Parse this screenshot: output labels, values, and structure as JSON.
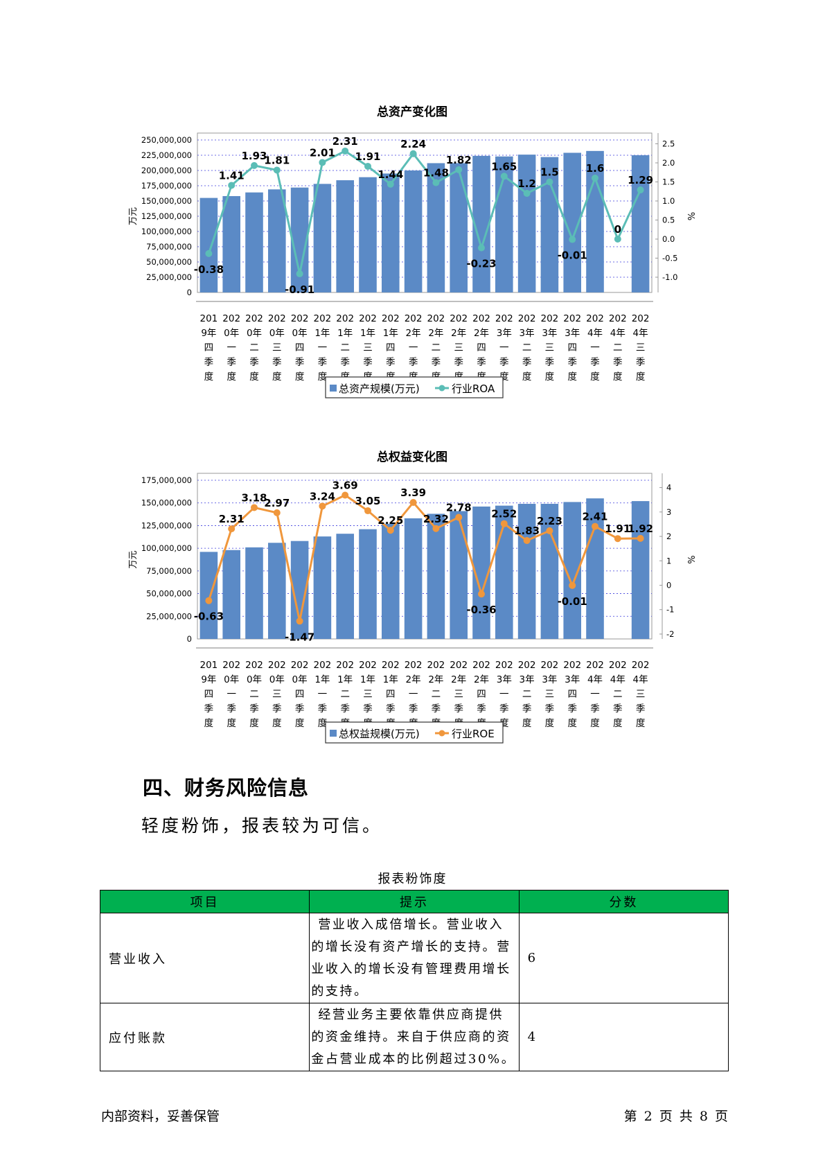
{
  "chart_data": [
    {
      "type": "bar",
      "title": "总资产变化图",
      "ylabel": "万元",
      "y2label": "%",
      "ylim": [
        0,
        250000000
      ],
      "y2lim": [
        -1.4,
        2.6
      ],
      "yticks": [
        "250,000,000",
        "225,000,000",
        "200,000,000",
        "175,000,000",
        "150,000,000",
        "125,000,000",
        "100,000,000",
        "75,000,000",
        "50,000,000",
        "25,000,000",
        "0"
      ],
      "y2ticks": [
        "2.5",
        "2.0",
        "1.5",
        "1.0",
        "0.5",
        "0.0",
        "-0.5",
        "-1.0"
      ],
      "categories": [
        [
          "201",
          "9年",
          "四",
          "季",
          "度"
        ],
        [
          "202",
          "0年",
          "一",
          "季",
          "度"
        ],
        [
          "202",
          "0年",
          "二",
          "季",
          "度"
        ],
        [
          "202",
          "0年",
          "三",
          "季",
          "度"
        ],
        [
          "202",
          "0年",
          "四",
          "季",
          "度"
        ],
        [
          "202",
          "1年",
          "一",
          "季",
          "度"
        ],
        [
          "202",
          "1年",
          "二",
          "季",
          "度"
        ],
        [
          "202",
          "1年",
          "三",
          "季",
          "度"
        ],
        [
          "202",
          "1年",
          "四",
          "季",
          "度"
        ],
        [
          "202",
          "2年",
          "一",
          "季",
          "度"
        ],
        [
          "202",
          "2年",
          "二",
          "季",
          "度"
        ],
        [
          "202",
          "2年",
          "三",
          "季",
          "度"
        ],
        [
          "202",
          "2年",
          "四",
          "季",
          "度"
        ],
        [
          "202",
          "3年",
          "一",
          "季",
          "度"
        ],
        [
          "202",
          "3年",
          "二",
          "季",
          "度"
        ],
        [
          "202",
          "3年",
          "三",
          "季",
          "度"
        ],
        [
          "202",
          "3年",
          "四",
          "季",
          "度"
        ],
        [
          "202",
          "4年",
          "一",
          "季",
          "度"
        ],
        [
          "202",
          "4年",
          "二",
          "季",
          "度"
        ],
        [
          "202",
          "4年",
          "三",
          "季",
          "度"
        ]
      ],
      "series": [
        {
          "name": "总资产规模(万元)",
          "type": "bar",
          "color": "#5b8ac6",
          "values": [
            155000000,
            158000000,
            164000000,
            169000000,
            172000000,
            178000000,
            184000000,
            189000000,
            195000000,
            200000000,
            212000000,
            212000000,
            224000000,
            223000000,
            226000000,
            222000000,
            229000000,
            232000000,
            null,
            225000000
          ]
        },
        {
          "name": "行业ROA",
          "type": "line",
          "color": "#5bbdb6",
          "values": [
            -0.38,
            1.41,
            1.93,
            1.81,
            -0.91,
            2.01,
            2.31,
            1.91,
            1.44,
            2.24,
            1.48,
            1.82,
            -0.23,
            1.65,
            1.2,
            1.5,
            -0.01,
            1.6,
            0,
            1.29
          ],
          "labels": [
            "-0.38",
            "1.41",
            "1.93",
            "1.81",
            "-0.91",
            "2.01",
            "2.31",
            "1.91",
            "1.44",
            "2.24",
            "1.48",
            "1.82",
            "-0.23",
            "1.65",
            "1.2",
            "1.5",
            "-0.01",
            "1.6",
            "0",
            "1.29"
          ]
        }
      ],
      "legend": "bottom",
      "grid": true
    },
    {
      "type": "bar",
      "title": "总权益变化图",
      "ylabel": "万元",
      "y2label": "%",
      "ylim": [
        0,
        175000000
      ],
      "y2lim": [
        -2.2,
        4.3
      ],
      "yticks": [
        "175,000,000",
        "150,000,000",
        "125,000,000",
        "100,000,000",
        "75,000,000",
        "50,000,000",
        "25,000,000",
        "0"
      ],
      "y2ticks": [
        "4",
        "3",
        "2",
        "1",
        "0",
        "-1",
        "-2"
      ],
      "categories": [
        [
          "201",
          "9年",
          "四",
          "季",
          "度"
        ],
        [
          "202",
          "0年",
          "一",
          "季",
          "度"
        ],
        [
          "202",
          "0年",
          "二",
          "季",
          "度"
        ],
        [
          "202",
          "0年",
          "三",
          "季",
          "度"
        ],
        [
          "202",
          "0年",
          "四",
          "季",
          "度"
        ],
        [
          "202",
          "1年",
          "一",
          "季",
          "度"
        ],
        [
          "202",
          "1年",
          "二",
          "季",
          "度"
        ],
        [
          "202",
          "1年",
          "三",
          "季",
          "度"
        ],
        [
          "202",
          "1年",
          "四",
          "季",
          "度"
        ],
        [
          "202",
          "2年",
          "一",
          "季",
          "度"
        ],
        [
          "202",
          "2年",
          "二",
          "季",
          "度"
        ],
        [
          "202",
          "2年",
          "三",
          "季",
          "度"
        ],
        [
          "202",
          "2年",
          "四",
          "季",
          "度"
        ],
        [
          "202",
          "3年",
          "一",
          "季",
          "度"
        ],
        [
          "202",
          "3年",
          "二",
          "季",
          "度"
        ],
        [
          "202",
          "3年",
          "三",
          "季",
          "度"
        ],
        [
          "202",
          "3年",
          "四",
          "季",
          "度"
        ],
        [
          "202",
          "4年",
          "一",
          "季",
          "度"
        ],
        [
          "202",
          "4年",
          "二",
          "季",
          "度"
        ],
        [
          "202",
          "4年",
          "三",
          "季",
          "度"
        ]
      ],
      "series": [
        {
          "name": "总权益规模(万元)",
          "type": "bar",
          "color": "#5b8ac6",
          "values": [
            96000000,
            98000000,
            101000000,
            106000000,
            108000000,
            113000000,
            116000000,
            121000000,
            127000000,
            133000000,
            138000000,
            141000000,
            146000000,
            147000000,
            149000000,
            149000000,
            151000000,
            155000000,
            null,
            152000000
          ]
        },
        {
          "name": "行业ROE",
          "type": "line",
          "color": "#f0973c",
          "values": [
            -0.63,
            2.31,
            3.18,
            2.97,
            -1.47,
            3.24,
            3.69,
            3.05,
            2.25,
            3.39,
            2.32,
            2.78,
            -0.36,
            2.52,
            1.83,
            2.23,
            -0.01,
            2.41,
            1.91,
            1.92
          ],
          "labels": [
            "-0.63",
            "2.31",
            "3.18",
            "2.97",
            "-1.47",
            "3.24",
            "3.69",
            "3.05",
            "2.25",
            "3.39",
            "2.32",
            "2.78",
            "-0.36",
            "2.52",
            "1.83",
            "2.23",
            "-0.01",
            "2.41",
            "1.91",
            "1.92"
          ]
        }
      ],
      "legend": "bottom",
      "grid": true
    }
  ],
  "section": {
    "title": "四、财务风险信息",
    "text": "轻度粉饰，报表较为可信。"
  },
  "table": {
    "caption": "报表粉饰度",
    "headers": [
      "项目",
      "提示",
      "分数"
    ],
    "header_color": "#00b050",
    "rows": [
      {
        "item": "营业收入",
        "hint": "营业收入成倍增长。营业收入的增长没有资产增长的支持。营业收入的增长没有管理费用增长的支持。",
        "score": "6"
      },
      {
        "item": "应付账款",
        "hint": "经营业务主要依靠供应商提供的资金维持。来自于供应商的资金占营业成本的比例超过30%。",
        "score": "4"
      }
    ]
  },
  "footer": {
    "left": "内部资料，妥善保管",
    "right": "第 2 页   共 8 页"
  }
}
